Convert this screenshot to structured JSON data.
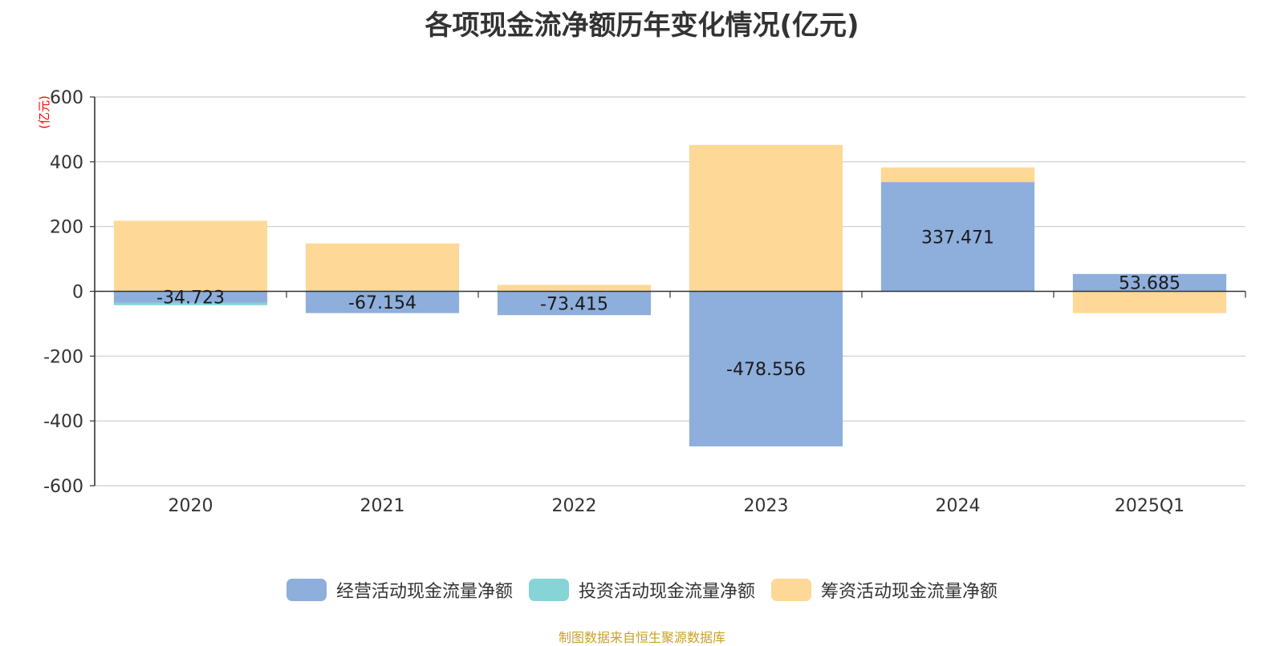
{
  "chart_data": {
    "type": "bar",
    "stacked": true,
    "title": "各项现金流净额历年变化情况(亿元)",
    "ylabel": "(亿元)",
    "xlabel": "",
    "ylim": [
      -600,
      600
    ],
    "yticks": [
      600,
      400,
      200,
      0,
      -200,
      -400,
      -600
    ],
    "grid": true,
    "legend_position": "bottom",
    "categories": [
      "2020",
      "2021",
      "2022",
      "2023",
      "2024",
      "2025Q1"
    ],
    "series": [
      {
        "name": "经营活动现金流量净额",
        "color": "#8eaedc",
        "values": [
          -34.723,
          -67.154,
          -73.415,
          -478.556,
          337.471,
          53.685
        ],
        "labels": [
          "-34.723",
          "-67.154",
          "-73.415",
          "-478.556",
          "337.471",
          "53.685"
        ]
      },
      {
        "name": "投资活动现金流量净额",
        "color": "#86d4d6",
        "values": [
          -8,
          3,
          0,
          0,
          0,
          0
        ]
      },
      {
        "name": "筹资活动现金流量净额",
        "color": "#fed897",
        "values": [
          218,
          145,
          20,
          452,
          45,
          -67
        ]
      }
    ]
  },
  "footer": {
    "source": "制图数据来自恒生聚源数据库"
  }
}
